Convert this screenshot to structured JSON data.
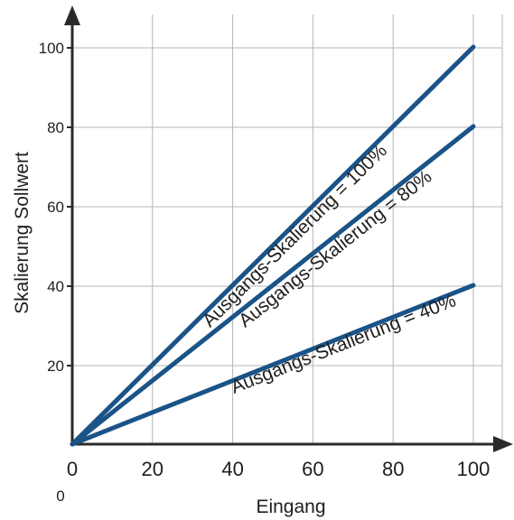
{
  "chart_data": {
    "type": "line",
    "title": "",
    "xlabel": "Eingang",
    "ylabel": "Skalierung Sollwert",
    "xlim": [
      0,
      100
    ],
    "ylim": [
      0,
      100
    ],
    "x_ticks": [
      "0",
      "20",
      "40",
      "60",
      "80",
      "100"
    ],
    "y_ticks": [
      "20",
      "40",
      "60",
      "80",
      "100"
    ],
    "extra_label": "0",
    "grid": true,
    "line_color": "#1a5387",
    "series": [
      {
        "name": "Ausgangs-Skalierung = 100%",
        "x": [
          0,
          100
        ],
        "y": [
          0,
          100
        ]
      },
      {
        "name": "Ausgangs-Skalierung = 80%",
        "x": [
          0,
          100
        ],
        "y": [
          0,
          80
        ]
      },
      {
        "name": "Ausgangs-Skalierung = 40%",
        "x": [
          0,
          100
        ],
        "y": [
          0,
          40
        ]
      }
    ]
  }
}
